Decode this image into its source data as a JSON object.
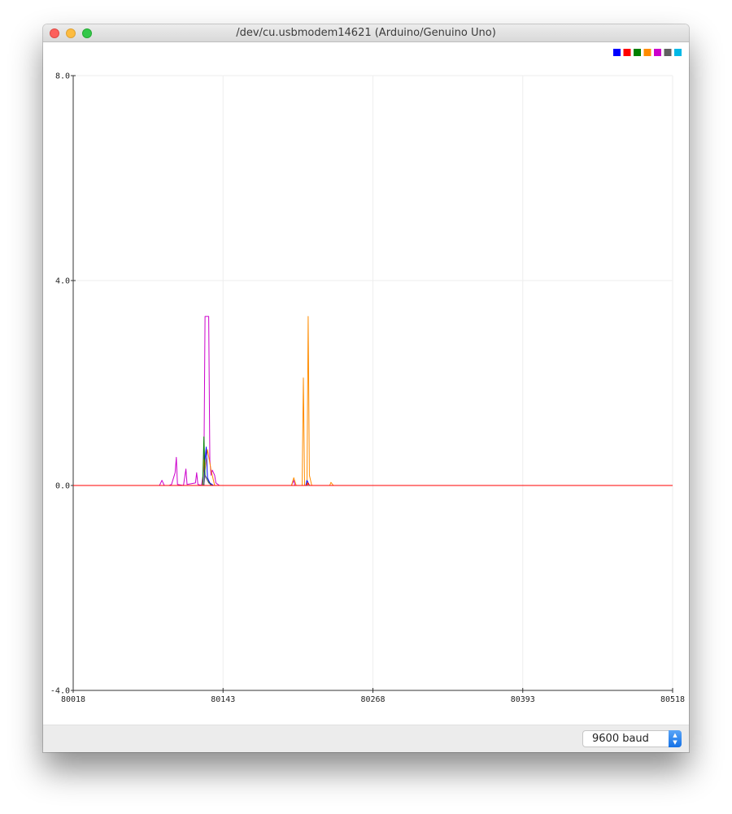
{
  "window": {
    "title": "/dev/cu.usbmodem14621 (Arduino/Genuino Uno)"
  },
  "footer": {
    "baud_label": "9600 baud"
  },
  "legend": {
    "colors": [
      "#0000ff",
      "#ff0000",
      "#008000",
      "#ff8c00",
      "#cc00cc",
      "#606060",
      "#00b8e6"
    ]
  },
  "chart_data": {
    "type": "line",
    "title": "",
    "xlabel": "",
    "ylabel": "",
    "xlim": [
      80018,
      80518
    ],
    "ylim": [
      -4.0,
      8.0
    ],
    "grid": true,
    "legend_placement": "top-right",
    "x_ticks": [
      "80018",
      "80143",
      "80268",
      "80393",
      "80518"
    ],
    "y_ticks": [
      "8.0",
      "4.0",
      "0.0",
      "-4.0"
    ],
    "series": [
      {
        "color": "#cc00cc",
        "points": [
          [
            80018,
            0
          ],
          [
            80090,
            0
          ],
          [
            80092,
            0.1
          ],
          [
            80094,
            0
          ],
          [
            80098,
            0
          ],
          [
            80100,
            0.02
          ],
          [
            80103,
            0.25
          ],
          [
            80104,
            0.55
          ],
          [
            80105,
            0.02
          ],
          [
            80110,
            0
          ],
          [
            80112,
            0.32
          ],
          [
            80113,
            0.02
          ],
          [
            80120,
            0.05
          ],
          [
            80121,
            0.25
          ],
          [
            80122,
            0.02
          ],
          [
            80125,
            0
          ],
          [
            80127,
            0.3
          ],
          [
            80128,
            3.3
          ],
          [
            80131,
            3.3
          ],
          [
            80132,
            0.5
          ],
          [
            80133,
            0.2
          ],
          [
            80134,
            0.3
          ],
          [
            80136,
            0.2
          ],
          [
            80137,
            0.05
          ],
          [
            80140,
            0
          ],
          [
            80180,
            0
          ],
          [
            80200,
            0
          ],
          [
            80202,
            0.1
          ],
          [
            80203,
            0
          ],
          [
            80300,
            0
          ],
          [
            80380,
            0
          ],
          [
            80518,
            0
          ]
        ]
      },
      {
        "color": "#ff8c00",
        "points": [
          [
            80018,
            0
          ],
          [
            80120,
            0
          ],
          [
            80126,
            0
          ],
          [
            80127,
            0.5
          ],
          [
            80128,
            0.3
          ],
          [
            80130,
            0.7
          ],
          [
            80133,
            0.3
          ],
          [
            80136,
            0
          ],
          [
            80200,
            0
          ],
          [
            80202,
            0.15
          ],
          [
            80204,
            0
          ],
          [
            80209,
            0
          ],
          [
            80210,
            2.1
          ],
          [
            80211,
            0
          ],
          [
            80213,
            0
          ],
          [
            80214,
            3.3
          ],
          [
            80215,
            0.2
          ],
          [
            80217,
            0
          ],
          [
            80232,
            0
          ],
          [
            80233,
            0.06
          ],
          [
            80235,
            0
          ],
          [
            80518,
            0
          ]
        ]
      },
      {
        "color": "#0000ff",
        "points": [
          [
            80018,
            0
          ],
          [
            80127,
            0
          ],
          [
            80128,
            0.5
          ],
          [
            80129,
            0.75
          ],
          [
            80130,
            0.15
          ],
          [
            80132,
            0.05
          ],
          [
            80135,
            0
          ],
          [
            80212,
            0
          ],
          [
            80213,
            0.1
          ],
          [
            80215,
            0
          ],
          [
            80518,
            0
          ]
        ]
      },
      {
        "color": "#008000",
        "points": [
          [
            80018,
            0
          ],
          [
            80126,
            0
          ],
          [
            80127,
            0.95
          ],
          [
            80128,
            0.2
          ],
          [
            80130,
            0.1
          ],
          [
            80133,
            0
          ],
          [
            80518,
            0
          ]
        ]
      },
      {
        "color": "#606060",
        "points": [
          [
            80018,
            0
          ],
          [
            80127,
            0
          ],
          [
            80128,
            0.2
          ],
          [
            80131,
            0.05
          ],
          [
            80134,
            0
          ],
          [
            80518,
            0
          ]
        ]
      },
      {
        "color": "#ff0000",
        "points": [
          [
            80018,
            0
          ],
          [
            80213,
            0
          ],
          [
            80214,
            0.05
          ],
          [
            80215,
            0
          ],
          [
            80518,
            0
          ]
        ]
      }
    ]
  }
}
